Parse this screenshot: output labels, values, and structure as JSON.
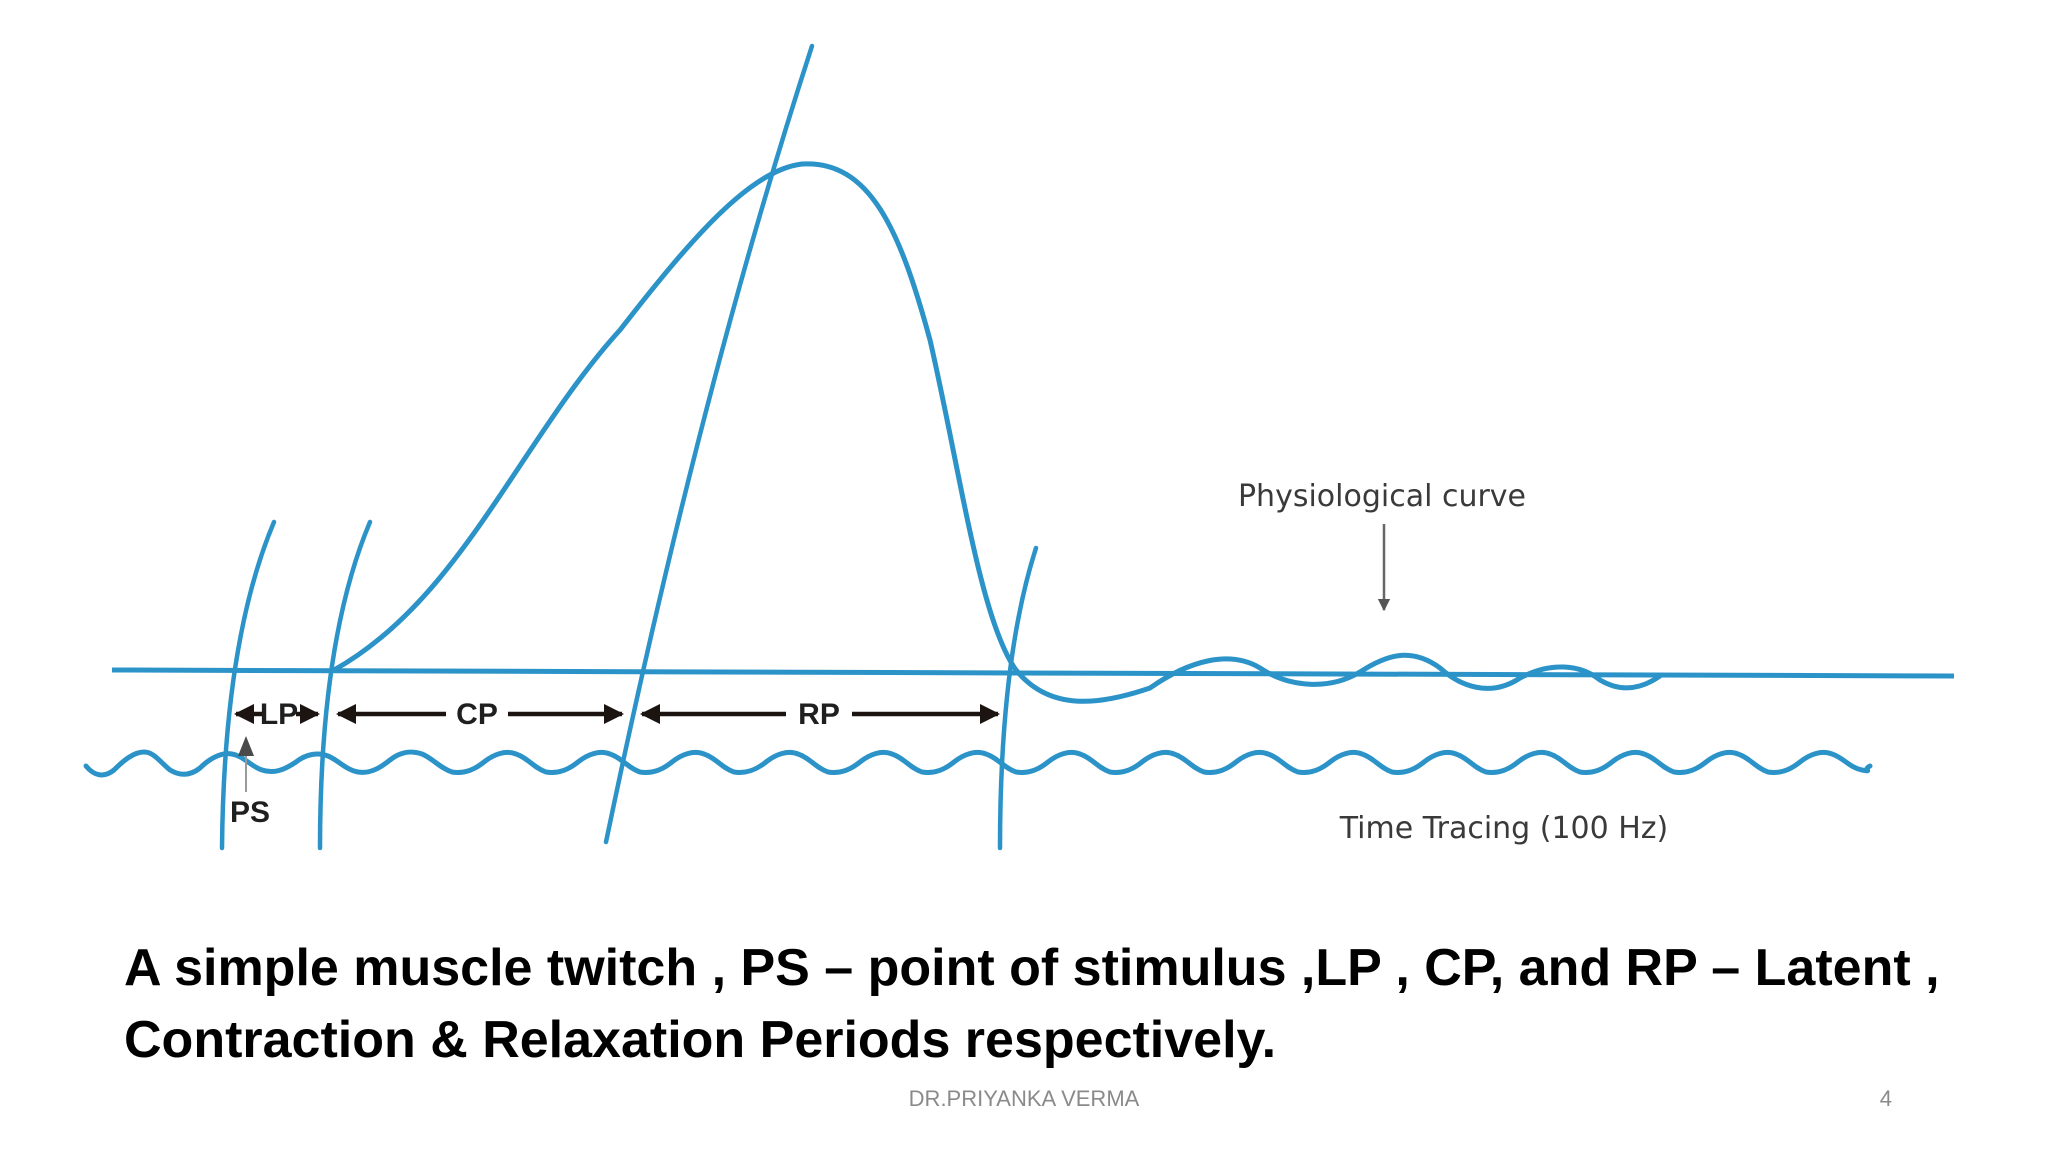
{
  "diagram": {
    "labels": {
      "lp": "LP",
      "cp": "CP",
      "rp": "RP",
      "ps": "PS",
      "physiological": "Physiological curve",
      "time_tracing": "Time Tracing (100 Hz)"
    },
    "colors": {
      "curve": "#2b93c8",
      "arrow": "#1c1410",
      "text": "#3a3a3a"
    }
  },
  "caption": {
    "line1": "A simple muscle twitch , PS – point of stimulus ,LP , CP, and RP – Latent ,",
    "line2": "Contraction & Relaxation Periods respectively."
  },
  "footer": {
    "author": "DR.PRIYANKA VERMA",
    "page": "4"
  }
}
